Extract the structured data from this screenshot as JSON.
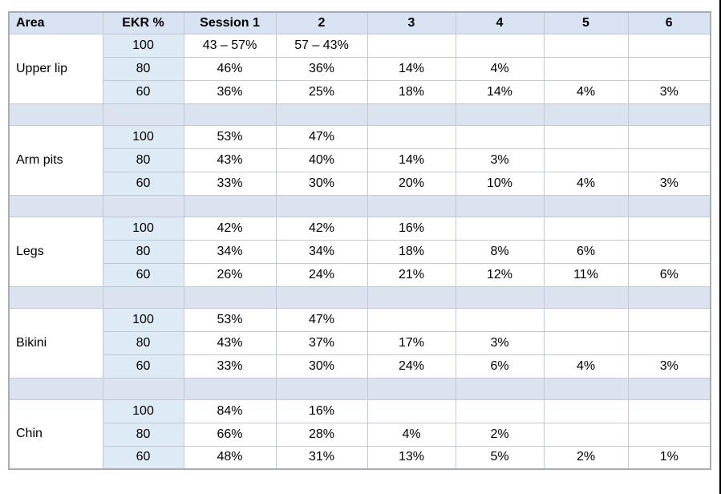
{
  "colors": {
    "header_bg": "#d9e2f3",
    "ekr_col_bg": "#deeaf6",
    "separator_bg": "#dce3f0",
    "grid_border": "#c3c7d1",
    "outer_border": "#a6adb5",
    "page_edge": "#000000",
    "text": "#000000"
  },
  "table": {
    "columns": [
      "Area",
      "EKR %",
      "Session 1",
      "2",
      "3",
      "4",
      "5",
      "6"
    ],
    "groups": [
      {
        "area": "Upper lip",
        "rows": [
          {
            "ekr": "100",
            "sessions": [
              "43 – 57%",
              "57 – 43%",
              "",
              "",
              "",
              ""
            ]
          },
          {
            "ekr": "80",
            "sessions": [
              "46%",
              "36%",
              "14%",
              "4%",
              "",
              ""
            ]
          },
          {
            "ekr": "60",
            "sessions": [
              "36%",
              "25%",
              "18%",
              "14%",
              "4%",
              "3%"
            ]
          }
        ]
      },
      {
        "area": "Arm pits",
        "rows": [
          {
            "ekr": "100",
            "sessions": [
              "53%",
              "47%",
              "",
              "",
              "",
              ""
            ]
          },
          {
            "ekr": "80",
            "sessions": [
              "43%",
              "40%",
              "14%",
              "3%",
              "",
              ""
            ]
          },
          {
            "ekr": "60",
            "sessions": [
              "33%",
              "30%",
              "20%",
              "10%",
              "4%",
              "3%"
            ]
          }
        ]
      },
      {
        "area": "Legs",
        "rows": [
          {
            "ekr": "100",
            "sessions": [
              "42%",
              "42%",
              "16%",
              "",
              "",
              ""
            ]
          },
          {
            "ekr": "80",
            "sessions": [
              "34%",
              "34%",
              "18%",
              "8%",
              "6%",
              ""
            ]
          },
          {
            "ekr": "60",
            "sessions": [
              "26%",
              "24%",
              "21%",
              "12%",
              "11%",
              "6%"
            ]
          }
        ]
      },
      {
        "area": "Bikini",
        "rows": [
          {
            "ekr": "100",
            "sessions": [
              "53%",
              "47%",
              "",
              "",
              "",
              ""
            ]
          },
          {
            "ekr": "80",
            "sessions": [
              "43%",
              "37%",
              "17%",
              "3%",
              "",
              ""
            ]
          },
          {
            "ekr": "60",
            "sessions": [
              "33%",
              "30%",
              "24%",
              "6%",
              "4%",
              "3%"
            ]
          }
        ]
      },
      {
        "area": "Chin",
        "rows": [
          {
            "ekr": "100",
            "sessions": [
              "84%",
              "16%",
              "",
              "",
              "",
              ""
            ]
          },
          {
            "ekr": "80",
            "sessions": [
              "66%",
              "28%",
              "4%",
              "2%",
              "",
              ""
            ]
          },
          {
            "ekr": "60",
            "sessions": [
              "48%",
              "31%",
              "13%",
              "5%",
              "2%",
              "1%"
            ]
          }
        ]
      }
    ]
  }
}
